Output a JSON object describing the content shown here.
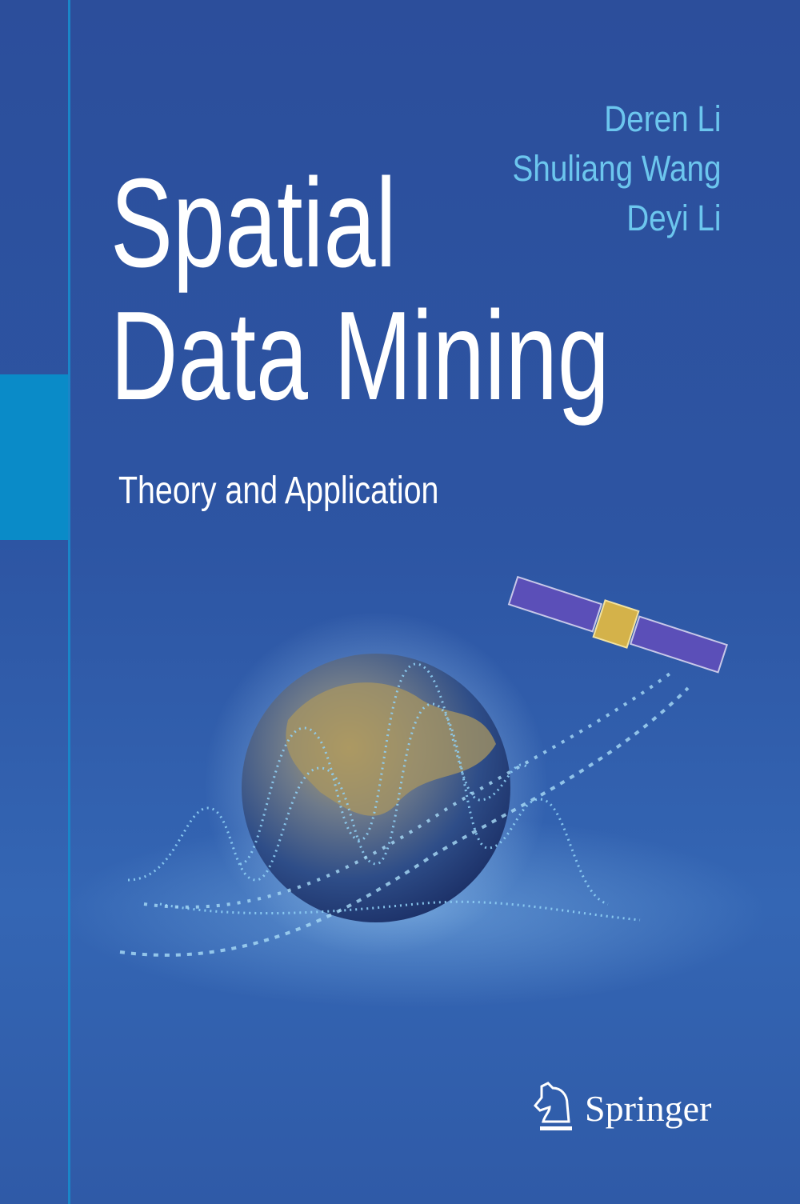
{
  "cover": {
    "authors": [
      "Deren Li",
      "Shuliang Wang",
      "Deyi Li"
    ],
    "title_lines": [
      "Spatial",
      "Data Mining"
    ],
    "subtitle": "Theory and Application",
    "publisher": "Springer",
    "colors": {
      "background": "#2c4e9b",
      "accent_block": "#0a8bc8",
      "author_text": "#6cc6ee",
      "title_text": "#ffffff"
    },
    "illustration": [
      "globe",
      "satellite",
      "dotted-data-waves",
      "binary-stream"
    ]
  }
}
